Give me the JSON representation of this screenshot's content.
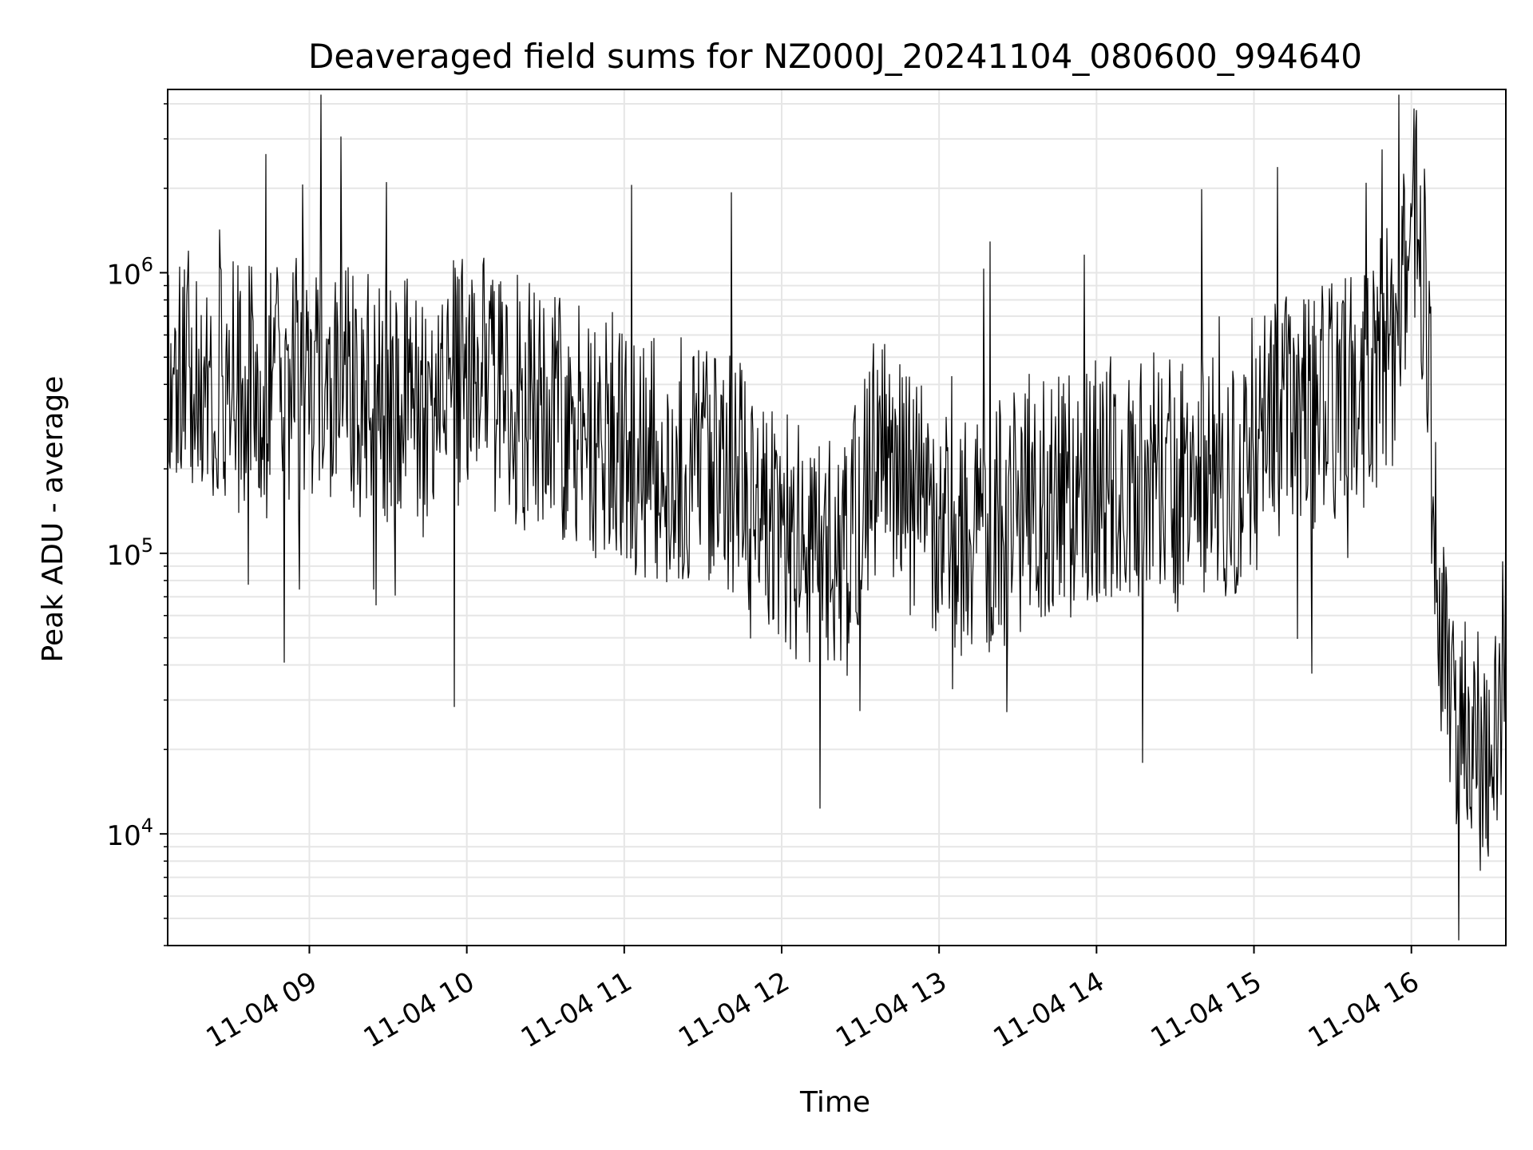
{
  "chart_data": {
    "type": "line",
    "title": "Deaveraged field sums for NZ000J_20241104_080600_994640",
    "xlabel": "Time",
    "ylabel": "Peak ADU - average",
    "yscale": "log",
    "ylim": [
      4000,
      4500000
    ],
    "xlim": [
      "2024-11-04 08:06",
      "2024-11-04 16:36"
    ],
    "grid": true,
    "line_color": "#000000",
    "grid_color": "#e6e6e6",
    "x_ticks": [
      {
        "value": "2024-11-04 09:00",
        "label": "11-04 09"
      },
      {
        "value": "2024-11-04 10:00",
        "label": "11-04 10"
      },
      {
        "value": "2024-11-04 11:00",
        "label": "11-04 11"
      },
      {
        "value": "2024-11-04 12:00",
        "label": "11-04 12"
      },
      {
        "value": "2024-11-04 13:00",
        "label": "11-04 13"
      },
      {
        "value": "2024-11-04 14:00",
        "label": "11-04 14"
      },
      {
        "value": "2024-11-04 15:00",
        "label": "11-04 15"
      },
      {
        "value": "2024-11-04 16:00",
        "label": "11-04 16"
      }
    ],
    "y_ticks": [
      {
        "value": 10000,
        "base": "10",
        "exp": "4"
      },
      {
        "value": 100000,
        "base": "10",
        "exp": "5"
      },
      {
        "value": 1000000,
        "base": "10",
        "exp": "6"
      }
    ],
    "series": [
      {
        "x": [
          "2024-11-04 08:06",
          "2024-11-04 08:15",
          "2024-11-04 08:25",
          "2024-11-04 08:35",
          "2024-11-04 08:45",
          "2024-11-04 08:55",
          "2024-11-04 09:05",
          "2024-11-04 09:15",
          "2024-11-04 09:25",
          "2024-11-04 09:35",
          "2024-11-04 09:45",
          "2024-11-04 09:55",
          "2024-11-04 10:05",
          "2024-11-04 10:15",
          "2024-11-04 10:25",
          "2024-11-04 10:35",
          "2024-11-04 10:45",
          "2024-11-04 10:55",
          "2024-11-04 11:05",
          "2024-11-04 11:15",
          "2024-11-04 11:25",
          "2024-11-04 11:35",
          "2024-11-04 11:45",
          "2024-11-04 11:55",
          "2024-11-04 12:05",
          "2024-11-04 12:15",
          "2024-11-04 12:25",
          "2024-11-04 12:35",
          "2024-11-04 12:45",
          "2024-11-04 12:55",
          "2024-11-04 13:05",
          "2024-11-04 13:15",
          "2024-11-04 13:25",
          "2024-11-04 13:35",
          "2024-11-04 13:45",
          "2024-11-04 13:55",
          "2024-11-04 14:05",
          "2024-11-04 14:15",
          "2024-11-04 14:25",
          "2024-11-04 14:35",
          "2024-11-04 14:45",
          "2024-11-04 14:55",
          "2024-11-04 15:05",
          "2024-11-04 15:15",
          "2024-11-04 15:25",
          "2024-11-04 15:35",
          "2024-11-04 15:45",
          "2024-11-04 15:55",
          "2024-11-04 16:00",
          "2024-11-04 16:05",
          "2024-11-04 16:10",
          "2024-11-04 16:15",
          "2024-11-04 16:20",
          "2024-11-04 16:25",
          "2024-11-04 16:30",
          "2024-11-04 16:36"
        ],
        "y": [
          550000,
          500000,
          420000,
          380000,
          360000,
          400000,
          450000,
          380000,
          340000,
          350000,
          330000,
          400000,
          420000,
          380000,
          320000,
          300000,
          280000,
          260000,
          220000,
          200000,
          230000,
          220000,
          180000,
          150000,
          110000,
          100000,
          95000,
          220000,
          180000,
          140000,
          120000,
          110000,
          130000,
          160000,
          150000,
          170000,
          190000,
          200000,
          180000,
          170000,
          180000,
          200000,
          280000,
          300000,
          330000,
          380000,
          420000,
          600000,
          1800000,
          900000,
          80000,
          30000,
          25000,
          20000,
          15000,
          60000
        ]
      }
    ]
  }
}
